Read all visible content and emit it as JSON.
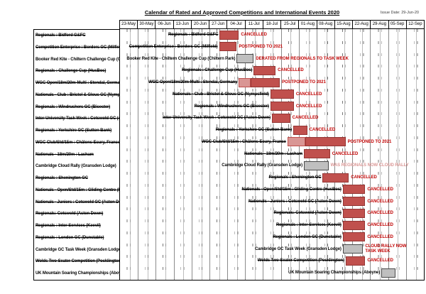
{
  "page": {
    "title": "Calendar of Rated and Approved Competitions and International Events 2020",
    "issue_date": "Issue Date: 29-Jun-20"
  },
  "colors": {
    "bars": {
      "red": "#C0504D",
      "red_light": "#D99694",
      "grey": "#BFBFBF"
    },
    "bar_borders": {
      "red": "#943634",
      "red_light": "#C0504D",
      "grey": "#4A4A4A"
    },
    "annotations": {
      "red": "#C00000",
      "pink": "#DA9694"
    }
  },
  "chart_data": {
    "type": "gantt",
    "title": "Calendar of Rated and Approved Competitions and International Events 2020",
    "unit": "percent_of_timeline",
    "weeks": [
      "23-May",
      "30-May",
      "06-Jun",
      "13-Jun",
      "20-Jun",
      "27-Jun",
      "04-Jul",
      "11-Jul",
      "18-Jul",
      "25-Jul",
      "01-Aug",
      "08-Aug",
      "15-Aug",
      "22-Aug",
      "29-Aug",
      "05-Sep",
      "12-Sep"
    ],
    "rows": [
      {
        "label": "Regionals : Bidford G&FC",
        "struck": true,
        "segments": [
          {
            "color": "red",
            "start": 32.8,
            "end": 39.1
          }
        ],
        "annotation": "CANCELLED",
        "annotation_color": "red",
        "annotation_wrap": false
      },
      {
        "label": "Competition Enterprise : Borders GC (Milfield)",
        "struck": true,
        "segments": [
          {
            "color": "red",
            "start": 32.6,
            "end": 38.4
          }
        ],
        "annotation": "POSTPONED TO 2021",
        "annotation_color": "red",
        "annotation_wrap": false
      },
      {
        "label": "Booker Red Kite - Chiltern Challenge Cup (Chiltern Park)",
        "struck": false,
        "segments": [
          {
            "color": "grey",
            "start": 38.4,
            "end": 44.0
          }
        ],
        "annotation": "DERATED FROM REGIONALS TO TASK WEEK",
        "annotation_color": "red",
        "annotation_wrap": false
      },
      {
        "label": "Regionals : Challenge Cup (HusBos)",
        "struck": true,
        "segments": [
          {
            "color": "red",
            "start": 44.0,
            "end": 51.2
          }
        ],
        "annotation": "CANCELLED",
        "annotation_color": "red",
        "annotation_wrap": false
      },
      {
        "label": "WGC Open/18m/20m-Multi : Stendal, Germany",
        "struck": true,
        "segments": [
          {
            "color": "red_light",
            "start": 39.1,
            "end": 43.0
          },
          {
            "color": "red",
            "start": 43.0,
            "end": 52.6
          }
        ],
        "annotation": "POSTPONED TO 2021",
        "annotation_color": "red",
        "annotation_wrap": false
      },
      {
        "label": "Nationals - Club : Bristol & Glouc GC (Nympsfield)",
        "struck": true,
        "segments": [
          {
            "color": "red",
            "start": 49.5,
            "end": 57.2
          }
        ],
        "annotation": "CANCELLED",
        "annotation_color": "red",
        "annotation_wrap": false
      },
      {
        "label": "Regionals : Windrushers GC (Bicester)",
        "struck": true,
        "segments": [
          {
            "color": "red",
            "start": 49.5,
            "end": 57.2
          }
        ],
        "annotation": "CANCELLED",
        "annotation_color": "red",
        "annotation_wrap": false
      },
      {
        "label": "Inter-University Task Week : Cotswold GC (Aston Down)",
        "struck": true,
        "segments": [
          {
            "color": "red",
            "start": 50.0,
            "end": 56.0
          }
        ],
        "annotation": "CANCELLED",
        "annotation_color": "red",
        "annotation_wrap": false
      },
      {
        "label": "Regionals : Yorkshire GC (Sutton Bank)",
        "struck": true,
        "segments": [
          {
            "color": "red",
            "start": 57.0,
            "end": 61.6
          }
        ],
        "annotation": "CANCELLED",
        "annotation_color": "red",
        "annotation_wrap": false
      },
      {
        "label": "WGC Club/Std/15m : Châlons-Ecury, France",
        "struck": true,
        "segments": [
          {
            "color": "red_light",
            "start": 55.1,
            "end": 60.9
          },
          {
            "color": "red",
            "start": 60.9,
            "end": 74.2
          }
        ],
        "annotation": "POSTPONED TO 2021",
        "annotation_color": "red",
        "annotation_wrap": false
      },
      {
        "label": "Nationals - 18m/20m : Lasham",
        "struck": true,
        "segments": [
          {
            "color": "red",
            "start": 60.5,
            "end": 69.1
          }
        ],
        "annotation": "CANCELLED",
        "annotation_color": "red",
        "annotation_wrap": false
      },
      {
        "label": "Cambridge Cloud Rally (Gransden Lodge)",
        "struck": false,
        "segments": [
          {
            "color": "grey",
            "start": 60.5,
            "end": 68.6
          }
        ],
        "annotation": "WAS REGIONALS NOW CLOUD RALLY",
        "annotation_color": "pink",
        "annotation_wrap": false
      },
      {
        "label": "Regionals : Shenington GC",
        "struck": true,
        "segments": [
          {
            "color": "red",
            "start": 66.7,
            "end": 75.3
          }
        ],
        "annotation": "CANCELLED",
        "annotation_color": "red",
        "annotation_wrap": false
      },
      {
        "label": "Nationals - Open/Std/15m : Gliding Centre (HusBos)",
        "struck": true,
        "segments": [
          {
            "color": "red",
            "start": 73.3,
            "end": 80.7
          }
        ],
        "annotation": "CANCELLED",
        "annotation_color": "red",
        "annotation_wrap": false
      },
      {
        "label": "Nationals - Juniors : Cotswold GC (Aston Down)",
        "struck": true,
        "segments": [
          {
            "color": "red",
            "start": 73.3,
            "end": 80.7
          }
        ],
        "annotation": "CANCELLED",
        "annotation_color": "red",
        "annotation_wrap": false
      },
      {
        "label": "Regionals: Cotswold (Aston Down)",
        "struck": true,
        "segments": [
          {
            "color": "red",
            "start": 73.3,
            "end": 80.7
          }
        ],
        "annotation": "CANCELLED",
        "annotation_color": "red",
        "annotation_wrap": false
      },
      {
        "label": "Regionals : Inter-Services (Keevil)",
        "struck": true,
        "segments": [
          {
            "color": "red",
            "start": 73.3,
            "end": 80.7
          }
        ],
        "annotation": "CANCELLED",
        "annotation_color": "red",
        "annotation_wrap": false
      },
      {
        "label": "Regionals : London GC (Dunstable)",
        "struck": true,
        "segments": [
          {
            "color": "red",
            "start": 73.3,
            "end": 80.7
          }
        ],
        "annotation": "CANCELLED",
        "annotation_color": "red",
        "annotation_wrap": false
      },
      {
        "label": "Cambridge GC Task Week (Gransden Lodge)",
        "struck": false,
        "segments": [
          {
            "color": "grey",
            "start": 73.3,
            "end": 80.0
          }
        ],
        "annotation": "CLOUD RALLY NOW TASK WEEK",
        "annotation_color": "red",
        "annotation_wrap": true
      },
      {
        "label": "Wolds Two-Seater Competition (Pocklington)",
        "struck": true,
        "segments": [
          {
            "color": "red",
            "start": 74.2,
            "end": 80.7
          }
        ],
        "annotation": "CANCELLED",
        "annotation_color": "red",
        "annotation_wrap": false
      },
      {
        "label": "UK Mountain Soaring Championships (Aboyne)",
        "struck": false,
        "segments": [
          {
            "color": "grey",
            "start": 86.0,
            "end": 90.7
          }
        ],
        "annotation": null,
        "annotation_color": null,
        "annotation_wrap": false
      }
    ]
  }
}
